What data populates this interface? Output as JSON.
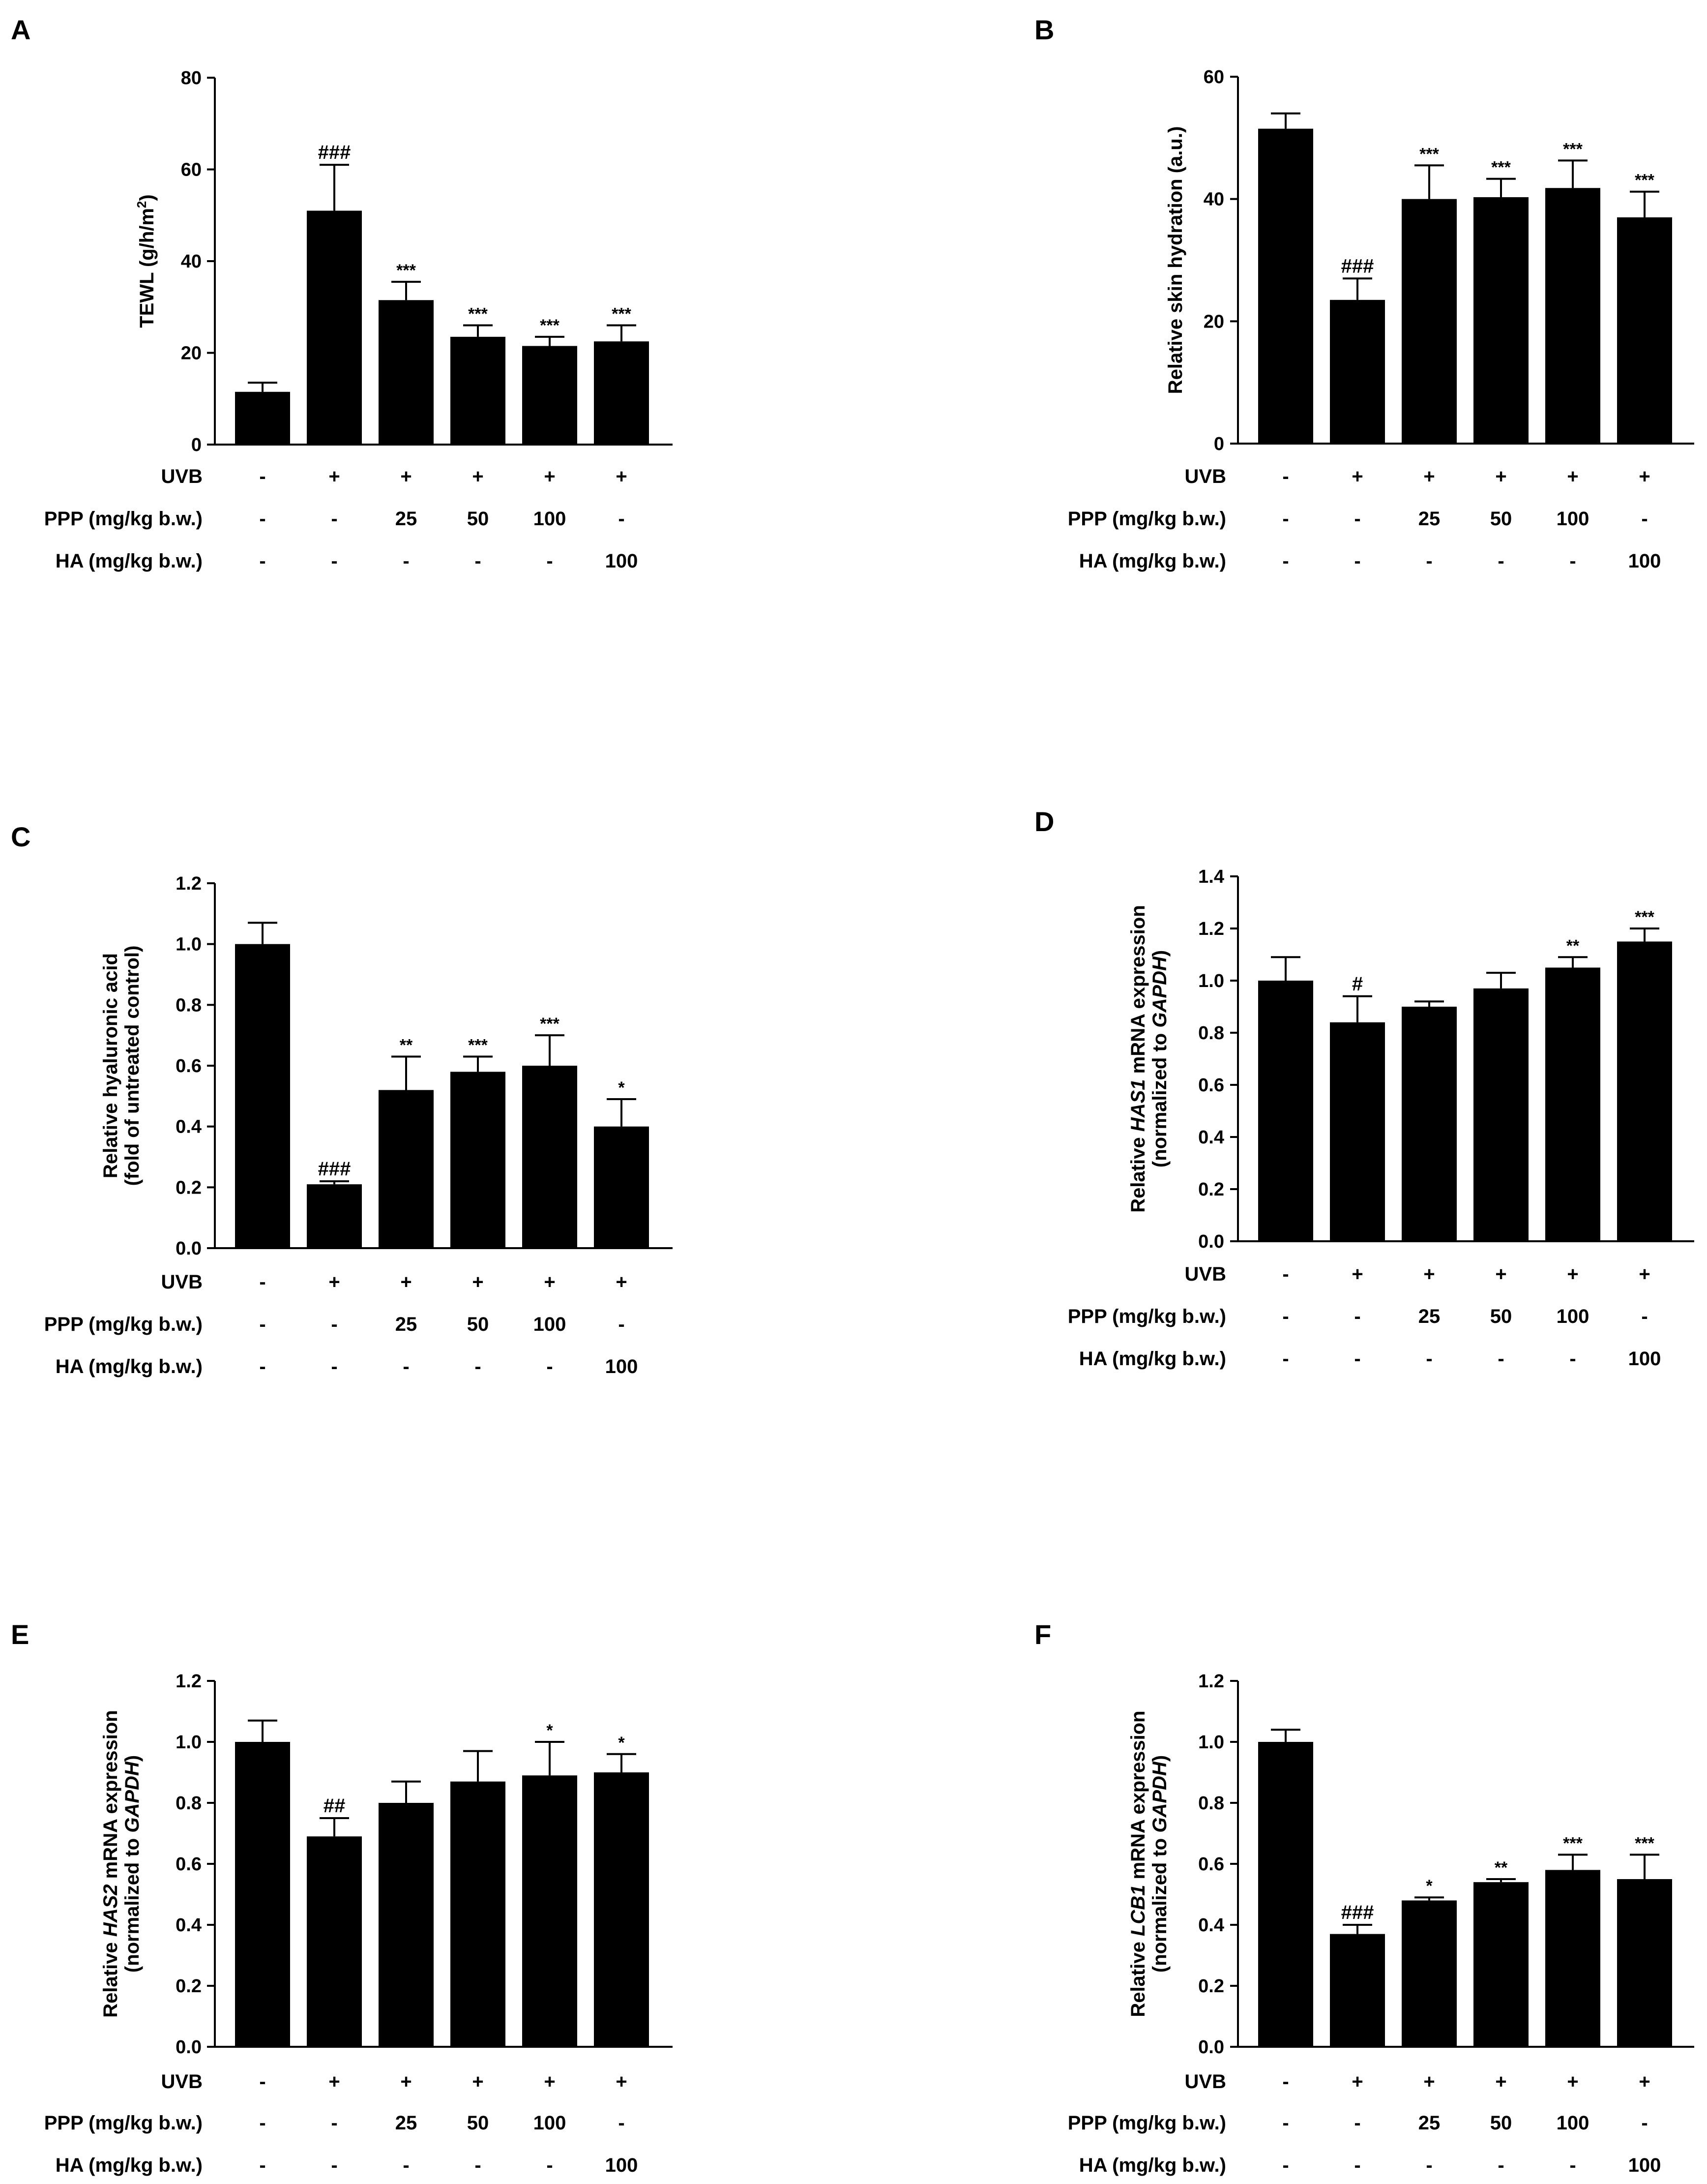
{
  "figure": {
    "row_labels": [
      "UVB",
      "PPP (mg/kg b.w.)",
      "HA (mg/kg b.w.)"
    ],
    "panel_letters": [
      "A",
      "B",
      "C",
      "D",
      "E",
      "F"
    ]
  },
  "chart_data": [
    {
      "panel": "A",
      "type": "bar",
      "ylabel": {
        "parts": [
          {
            "t": "TEWL (g/h/m"
          },
          {
            "t": "2",
            "sup": true
          },
          {
            "t": ")"
          }
        ]
      },
      "ylim": [
        0,
        80
      ],
      "yticks": [
        0,
        20,
        40,
        60,
        80
      ],
      "tick_decimals": 0,
      "values": [
        11.5,
        51,
        31.5,
        23.5,
        21.5,
        22.5
      ],
      "errors": [
        2,
        10,
        4,
        2.5,
        2,
        3.5
      ],
      "annotations": [
        "",
        "###",
        "***",
        "***",
        "***",
        "***"
      ],
      "rows": [
        [
          "-",
          "+",
          "+",
          "+",
          "+",
          "+"
        ],
        [
          "-",
          "-",
          "25",
          "50",
          "100",
          "-"
        ],
        [
          "-",
          "-",
          "-",
          "-",
          "-",
          "100"
        ]
      ]
    },
    {
      "panel": "B",
      "type": "bar",
      "ylabel": {
        "parts": [
          {
            "t": "Relative skin hydration (a.u.)"
          }
        ]
      },
      "ylim": [
        0,
        60
      ],
      "yticks": [
        0,
        20,
        40,
        60
      ],
      "tick_decimals": 0,
      "values": [
        51.5,
        23.5,
        40,
        40.3,
        41.8,
        37
      ],
      "errors": [
        2.5,
        3.5,
        5.5,
        3,
        4.5,
        4.2
      ],
      "annotations": [
        "",
        "###",
        "***",
        "***",
        "***",
        "***"
      ],
      "rows": [
        [
          "-",
          "+",
          "+",
          "+",
          "+",
          "+"
        ],
        [
          "-",
          "-",
          "25",
          "50",
          "100",
          "-"
        ],
        [
          "-",
          "-",
          "-",
          "-",
          "-",
          "100"
        ]
      ]
    },
    {
      "panel": "C",
      "type": "bar",
      "ylabel": {
        "lines": [
          [
            {
              "t": "Relative hyaluronic acid"
            }
          ],
          [
            {
              "t": "(fold of untreated control)"
            }
          ]
        ]
      },
      "ylim": [
        0,
        1.2
      ],
      "yticks": [
        0,
        0.2,
        0.4,
        0.6,
        0.8,
        1.0,
        1.2
      ],
      "tick_decimals": 1,
      "values": [
        1.0,
        0.21,
        0.52,
        0.58,
        0.6,
        0.4
      ],
      "errors": [
        0.07,
        0.01,
        0.11,
        0.05,
        0.1,
        0.09
      ],
      "annotations": [
        "",
        "###",
        "**",
        "***",
        "***",
        "*"
      ],
      "rows": [
        [
          "-",
          "+",
          "+",
          "+",
          "+",
          "+"
        ],
        [
          "-",
          "-",
          "25",
          "50",
          "100",
          "-"
        ],
        [
          "-",
          "-",
          "-",
          "-",
          "-",
          "100"
        ]
      ]
    },
    {
      "panel": "D",
      "type": "bar",
      "ylabel": {
        "lines": [
          [
            {
              "t": "Relative "
            },
            {
              "t": "HAS1",
              "italic": true
            },
            {
              "t": " mRNA expression"
            }
          ],
          [
            {
              "t": "(normalized to "
            },
            {
              "t": "GAPDH",
              "italic": true
            },
            {
              "t": ")"
            }
          ]
        ]
      },
      "ylim": [
        0,
        1.4
      ],
      "yticks": [
        0,
        0.2,
        0.4,
        0.6,
        0.8,
        1.0,
        1.2,
        1.4
      ],
      "tick_decimals": 1,
      "values": [
        1.0,
        0.84,
        0.9,
        0.97,
        1.05,
        1.15
      ],
      "errors": [
        0.09,
        0.1,
        0.02,
        0.06,
        0.04,
        0.05
      ],
      "annotations": [
        "",
        "#",
        "",
        "",
        "**",
        "***"
      ],
      "rows": [
        [
          "-",
          "+",
          "+",
          "+",
          "+",
          "+"
        ],
        [
          "-",
          "-",
          "25",
          "50",
          "100",
          "-"
        ],
        [
          "-",
          "-",
          "-",
          "-",
          "-",
          "100"
        ]
      ]
    },
    {
      "panel": "E",
      "type": "bar",
      "ylabel": {
        "lines": [
          [
            {
              "t": "Relative "
            },
            {
              "t": "HAS2",
              "italic": true
            },
            {
              "t": " mRNA expression"
            }
          ],
          [
            {
              "t": "(normalized to "
            },
            {
              "t": "GAPDH",
              "italic": true
            },
            {
              "t": ")"
            }
          ]
        ]
      },
      "ylim": [
        0,
        1.2
      ],
      "yticks": [
        0,
        0.2,
        0.4,
        0.6,
        0.8,
        1.0,
        1.2
      ],
      "tick_decimals": 1,
      "values": [
        1.0,
        0.69,
        0.8,
        0.87,
        0.89,
        0.9
      ],
      "errors": [
        0.07,
        0.06,
        0.07,
        0.1,
        0.11,
        0.06
      ],
      "annotations": [
        "",
        "##",
        "",
        "",
        "*",
        "*"
      ],
      "rows": [
        [
          "-",
          "+",
          "+",
          "+",
          "+",
          "+"
        ],
        [
          "-",
          "-",
          "25",
          "50",
          "100",
          "-"
        ],
        [
          "-",
          "-",
          "-",
          "-",
          "-",
          "100"
        ]
      ]
    },
    {
      "panel": "F",
      "type": "bar",
      "ylabel": {
        "lines": [
          [
            {
              "t": "Relative "
            },
            {
              "t": "LCB1",
              "italic": true
            },
            {
              "t": " mRNA expression"
            }
          ],
          [
            {
              "t": "(normalized to "
            },
            {
              "t": "GAPDH",
              "italic": true
            },
            {
              "t": ")"
            }
          ]
        ]
      },
      "ylim": [
        0,
        1.2
      ],
      "yticks": [
        0,
        0.2,
        0.4,
        0.6,
        0.8,
        1.0,
        1.2
      ],
      "tick_decimals": 1,
      "values": [
        1.0,
        0.37,
        0.48,
        0.54,
        0.58,
        0.55
      ],
      "errors": [
        0.04,
        0.03,
        0.01,
        0.01,
        0.05,
        0.08
      ],
      "annotations": [
        "",
        "###",
        "*",
        "**",
        "***",
        "***"
      ],
      "rows": [
        [
          "-",
          "+",
          "+",
          "+",
          "+",
          "+"
        ],
        [
          "-",
          "-",
          "25",
          "50",
          "100",
          "-"
        ],
        [
          "-",
          "-",
          "-",
          "-",
          "-",
          "100"
        ]
      ]
    }
  ]
}
